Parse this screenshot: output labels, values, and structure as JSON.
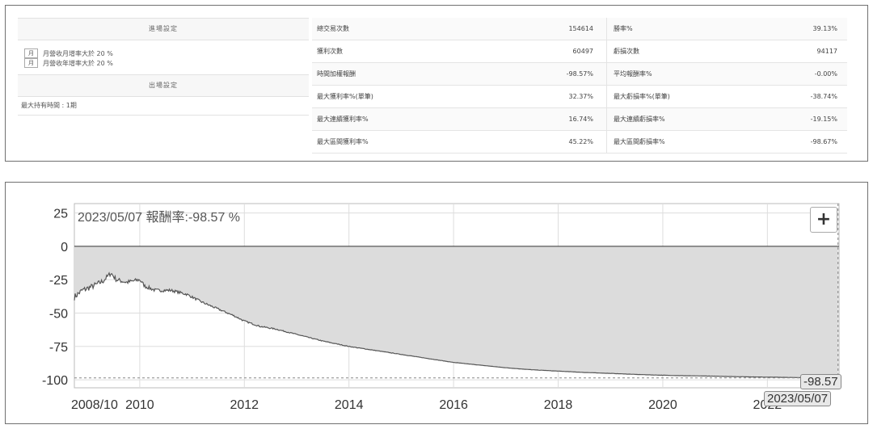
{
  "settings": {
    "entry_title": "進場設定",
    "entry_rules": [
      {
        "tag": "月",
        "text": "月營收月增率大於 20 %"
      },
      {
        "tag": "月",
        "text": "月營收年增率大於 20 %"
      }
    ],
    "exit_title": "出場設定",
    "hold_rule": "最大持有時間 : 1期"
  },
  "stats": [
    {
      "label": "總交易次數",
      "value": "154614",
      "label2": "勝率%",
      "value2": "39.13%"
    },
    {
      "label": "獲利次數",
      "value": "60497",
      "label2": "虧損次數",
      "value2": "94117"
    },
    {
      "label": "時間加權報酬",
      "value": "-98.57%",
      "label2": "平均報酬率%",
      "value2": "-0.00%"
    },
    {
      "label": "最大獲利率%(單筆)",
      "value": "32.37%",
      "label2": "最大虧損率%(單筆)",
      "value2": "-38.74%"
    },
    {
      "label": "最大連續獲利率%",
      "value": "16.74%",
      "label2": "最大連續虧損率%",
      "value2": "-19.15%"
    },
    {
      "label": "最大區間獲利率%",
      "value": "45.22%",
      "label2": "最大區間虧損率%",
      "value2": "-98.67%"
    }
  ],
  "chart": {
    "tooltip": "2023/05/07   報酬率:-98.57 %",
    "zoom_label": "+",
    "end_value_label": "-98.57",
    "end_date_label": "2023/05/07",
    "ytick_labels": [
      "25",
      "0",
      "-25",
      "-50",
      "-75",
      "-100"
    ],
    "xtick_labels": [
      "2008/10",
      "2010",
      "2012",
      "2014",
      "2016",
      "2018",
      "2020",
      "2022"
    ],
    "colors": {
      "line": "#555555",
      "fill": "#dcdcdc",
      "grid": "#dddddd"
    }
  },
  "chart_data": {
    "type": "area",
    "title": "",
    "xlabel": "",
    "ylabel": "",
    "ylim": [
      -100,
      25
    ],
    "xlim": [
      "2008/10",
      "2023/05"
    ],
    "grid": true,
    "series": [
      {
        "values": [
          {
            "x": 2008.75,
            "y": -38
          },
          {
            "x": 2008.9,
            "y": -33
          },
          {
            "x": 2009.1,
            "y": -30
          },
          {
            "x": 2009.3,
            "y": -26
          },
          {
            "x": 2009.45,
            "y": -20
          },
          {
            "x": 2009.55,
            "y": -25
          },
          {
            "x": 2009.75,
            "y": -27
          },
          {
            "x": 2010.0,
            "y": -25
          },
          {
            "x": 2010.1,
            "y": -30
          },
          {
            "x": 2010.3,
            "y": -33
          },
          {
            "x": 2010.6,
            "y": -33
          },
          {
            "x": 2010.9,
            "y": -36
          },
          {
            "x": 2011.2,
            "y": -42
          },
          {
            "x": 2011.5,
            "y": -47
          },
          {
            "x": 2011.8,
            "y": -52
          },
          {
            "x": 2012.0,
            "y": -56
          },
          {
            "x": 2012.3,
            "y": -60
          },
          {
            "x": 2012.6,
            "y": -62
          },
          {
            "x": 2013.0,
            "y": -66
          },
          {
            "x": 2013.5,
            "y": -71
          },
          {
            "x": 2014.0,
            "y": -75
          },
          {
            "x": 2014.5,
            "y": -78
          },
          {
            "x": 2015.0,
            "y": -81
          },
          {
            "x": 2015.5,
            "y": -84
          },
          {
            "x": 2016.0,
            "y": -87
          },
          {
            "x": 2016.5,
            "y": -89
          },
          {
            "x": 2017.0,
            "y": -91
          },
          {
            "x": 2017.5,
            "y": -92.5
          },
          {
            "x": 2018.0,
            "y": -93.5
          },
          {
            "x": 2018.5,
            "y": -94.5
          },
          {
            "x": 2019.0,
            "y": -95.2
          },
          {
            "x": 2019.5,
            "y": -96
          },
          {
            "x": 2020.0,
            "y": -96.6
          },
          {
            "x": 2020.5,
            "y": -97
          },
          {
            "x": 2021.0,
            "y": -97.3
          },
          {
            "x": 2021.5,
            "y": -97.7
          },
          {
            "x": 2022.0,
            "y": -98
          },
          {
            "x": 2022.5,
            "y": -98.3
          },
          {
            "x": 2023.0,
            "y": -98.5
          },
          {
            "x": 2023.35,
            "y": -98.57
          }
        ]
      }
    ],
    "current_value": -98.57,
    "current_date": "2023/05/07"
  }
}
